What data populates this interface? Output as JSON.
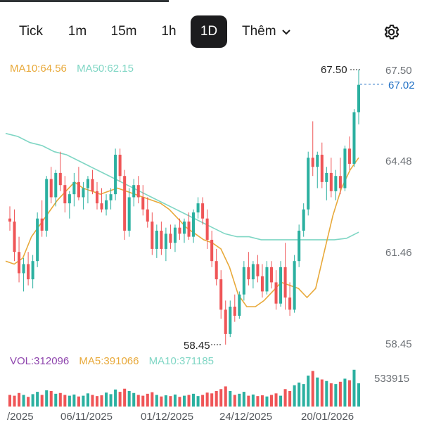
{
  "timeframe_tabs": [
    {
      "label": "Tick"
    },
    {
      "label": "1m"
    },
    {
      "label": "15m"
    },
    {
      "label": "1h"
    },
    {
      "label": "1D",
      "active": true
    }
  ],
  "more_label": "Thêm",
  "icons": {
    "settings": "gear-icon",
    "more": "chevron-down-icon"
  },
  "colors": {
    "up": "#2bb0a0",
    "down": "#ef5557",
    "ma10": "#e8a93a",
    "ma50": "#7fd6c4",
    "vol": "#8e44ad",
    "last_price": "#1f6fc4"
  },
  "indicators": {
    "ma10": "MA10:64.56",
    "ma50": "MA50:62.15"
  },
  "volume_legend": {
    "vol": "VOL:312096",
    "ma5": "MA5:391066",
    "ma10": "MA10:371185"
  },
  "chart_data": {
    "type": "candlestick",
    "price_axis": [
      "67.50",
      "64.48",
      "61.46",
      "58.45"
    ],
    "last_price": "67.02",
    "high_marker": "67.50",
    "low_marker": "58.45",
    "volume_axis": "533915",
    "date_labels": [
      "/2025",
      "06/11/2025",
      "01/12/2025",
      "24/12/2025",
      "20/01/2026"
    ],
    "ylim": [
      58.45,
      67.5
    ],
    "candles": [
      [
        62.6,
        63.0,
        62.2,
        62.5
      ],
      [
        62.5,
        62.9,
        61.2,
        61.5
      ],
      [
        61.5,
        62.0,
        60.5,
        60.8
      ],
      [
        60.8,
        61.3,
        60.2,
        61.1
      ],
      [
        61.1,
        61.5,
        60.4,
        60.6
      ],
      [
        60.6,
        61.4,
        60.3,
        61.2
      ],
      [
        61.2,
        62.8,
        61.0,
        62.6
      ],
      [
        62.6,
        63.2,
        62.0,
        62.2
      ],
      [
        62.2,
        64.0,
        62.0,
        63.9
      ],
      [
        63.9,
        64.3,
        63.1,
        63.3
      ],
      [
        63.3,
        64.2,
        63.0,
        64.1
      ],
      [
        64.1,
        64.8,
        63.5,
        63.7
      ],
      [
        63.7,
        64.0,
        62.8,
        63.1
      ],
      [
        63.1,
        63.5,
        62.6,
        63.4
      ],
      [
        63.4,
        64.1,
        63.0,
        63.8
      ],
      [
        63.8,
        64.3,
        63.2,
        63.3
      ],
      [
        63.3,
        63.8,
        62.9,
        63.6
      ],
      [
        63.6,
        64.0,
        63.1,
        63.9
      ],
      [
        63.9,
        64.2,
        63.4,
        63.5
      ],
      [
        63.5,
        63.8,
        62.9,
        63.1
      ],
      [
        63.1,
        63.6,
        62.8,
        62.9
      ],
      [
        62.9,
        63.4,
        62.7,
        63.2
      ],
      [
        63.2,
        63.6,
        62.9,
        63.4
      ],
      [
        63.4,
        64.9,
        63.2,
        64.7
      ],
      [
        64.7,
        64.9,
        63.8,
        64.0
      ],
      [
        64.0,
        64.2,
        61.9,
        62.2
      ],
      [
        62.2,
        63.6,
        62.0,
        63.3
      ],
      [
        63.3,
        63.9,
        63.0,
        63.7
      ],
      [
        63.7,
        64.0,
        63.1,
        63.3
      ],
      [
        63.3,
        63.7,
        62.7,
        62.9
      ],
      [
        62.9,
        63.3,
        62.3,
        62.5
      ],
      [
        62.5,
        62.8,
        61.4,
        61.6
      ],
      [
        61.6,
        62.4,
        61.3,
        62.2
      ],
      [
        62.2,
        62.5,
        61.4,
        61.6
      ],
      [
        61.6,
        62.3,
        61.2,
        62.1
      ],
      [
        62.1,
        62.4,
        61.6,
        61.8
      ],
      [
        61.8,
        62.4,
        61.5,
        62.3
      ],
      [
        62.3,
        62.6,
        61.9,
        62.1
      ],
      [
        62.1,
        62.6,
        61.8,
        62.5
      ],
      [
        62.5,
        62.8,
        61.9,
        62.0
      ],
      [
        62.0,
        62.9,
        61.8,
        62.8
      ],
      [
        62.8,
        63.3,
        62.6,
        63.1
      ],
      [
        63.1,
        63.3,
        62.4,
        62.6
      ],
      [
        62.6,
        62.9,
        61.6,
        61.9
      ],
      [
        61.9,
        62.2,
        61.0,
        61.2
      ],
      [
        61.2,
        61.6,
        60.4,
        60.6
      ],
      [
        60.6,
        60.9,
        59.3,
        59.6
      ],
      [
        59.6,
        59.9,
        58.45,
        58.8
      ],
      [
        58.8,
        59.9,
        58.7,
        59.7
      ],
      [
        59.7,
        60.1,
        59.2,
        59.4
      ],
      [
        59.4,
        60.2,
        59.3,
        60.1
      ],
      [
        60.1,
        61.2,
        59.9,
        61.0
      ],
      [
        61.0,
        61.5,
        60.4,
        60.6
      ],
      [
        60.6,
        61.2,
        60.3,
        61.1
      ],
      [
        61.1,
        61.4,
        60.5,
        60.7
      ],
      [
        60.7,
        61.1,
        60.0,
        60.2
      ],
      [
        60.2,
        61.2,
        60.1,
        61.0
      ],
      [
        61.0,
        61.2,
        60.3,
        60.5
      ],
      [
        60.5,
        60.9,
        59.6,
        59.8
      ],
      [
        59.8,
        61.2,
        59.7,
        61.0
      ],
      [
        61.0,
        61.8,
        59.6,
        60.0
      ],
      [
        60.0,
        60.5,
        59.4,
        59.6
      ],
      [
        59.6,
        61.4,
        59.5,
        61.2
      ],
      [
        61.2,
        62.4,
        61.0,
        62.2
      ],
      [
        62.2,
        63.1,
        62.0,
        62.9
      ],
      [
        62.9,
        64.8,
        62.7,
        64.6
      ],
      [
        64.6,
        65.8,
        64.0,
        64.3
      ],
      [
        64.3,
        64.8,
        63.6,
        64.7
      ],
      [
        64.7,
        65.1,
        63.6,
        63.8
      ],
      [
        63.8,
        64.3,
        63.2,
        64.1
      ],
      [
        64.1,
        64.6,
        63.3,
        63.5
      ],
      [
        63.5,
        64.2,
        63.2,
        64.0
      ],
      [
        64.0,
        64.6,
        63.4,
        63.6
      ],
      [
        63.6,
        65.0,
        63.5,
        64.9
      ],
      [
        64.9,
        65.3,
        64.2,
        64.4
      ],
      [
        64.4,
        66.2,
        64.3,
        66.1
      ],
      [
        66.1,
        67.5,
        65.7,
        67.0
      ]
    ],
    "ma10_line": [
      61.2,
      61.1,
      61.3,
      62.0,
      62.4,
      62.8,
      63.2,
      63.5,
      63.8,
      63.6,
      63.5,
      63.4,
      63.5,
      63.6,
      63.5,
      63.4,
      63.3,
      63.2,
      63.1,
      62.9,
      62.6,
      62.3,
      62.1,
      61.9,
      61.8,
      61.6,
      61.0,
      60.1,
      59.7,
      59.7,
      59.9,
      60.2,
      60.5,
      60.4,
      60.3,
      60.0,
      60.3,
      61.5,
      62.7,
      63.6,
      64.2,
      64.6
    ],
    "ma50_line": [
      65.4,
      65.3,
      65.1,
      65.0,
      64.8,
      64.7,
      64.5,
      64.3,
      64.1,
      63.9,
      63.7,
      63.5,
      63.3,
      63.1,
      62.9,
      62.7,
      62.5,
      62.3,
      62.1,
      62.0,
      62.0,
      61.9,
      61.9,
      61.9,
      61.9,
      61.9,
      61.9,
      61.9,
      61.95,
      62.15
    ],
    "volumes": [
      0.3,
      0.28,
      0.35,
      0.3,
      0.25,
      0.32,
      0.38,
      0.3,
      0.42,
      0.4,
      0.33,
      0.35,
      0.3,
      0.28,
      0.31,
      0.26,
      0.28,
      0.34,
      0.3,
      0.27,
      0.29,
      0.36,
      0.32,
      0.44,
      0.38,
      0.46,
      0.4,
      0.35,
      0.3,
      0.28,
      0.33,
      0.37,
      0.3,
      0.26,
      0.29,
      0.27,
      0.31,
      0.25,
      0.28,
      0.3,
      0.33,
      0.27,
      0.3,
      0.36,
      0.34,
      0.4,
      0.45,
      0.52,
      0.4,
      0.3,
      0.33,
      0.38,
      0.28,
      0.31,
      0.27,
      0.29,
      0.26,
      0.3,
      0.34,
      0.28,
      0.45,
      0.4,
      0.55,
      0.62,
      0.58,
      0.8,
      0.92,
      0.75,
      0.7,
      0.66,
      0.6,
      0.58,
      0.64,
      0.72,
      0.68,
      0.95,
      0.6
    ]
  }
}
